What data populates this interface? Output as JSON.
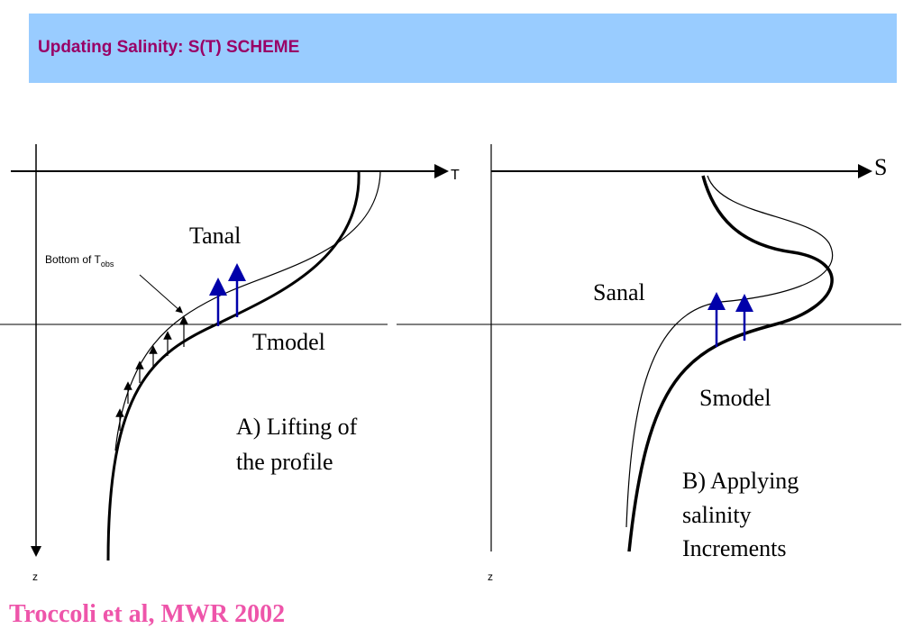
{
  "header": {
    "title": "Updating Salinity: S(T) SCHEME"
  },
  "left_panel": {
    "x_axis": "T",
    "z_axis": "z",
    "upper_curve": "Tanal",
    "lower_curve": "Tmodel",
    "annotation": {
      "text": "Bottom of T",
      "subscript": "obs"
    },
    "caption": [
      "A) Lifting of",
      "the profile"
    ]
  },
  "right_panel": {
    "x_axis": "S",
    "z_axis": "z",
    "upper_curve": "Sanal",
    "lower_curve": "Smodel",
    "caption": [
      "B) Applying",
      "salinity",
      "Increments"
    ]
  },
  "citation": "Troccoli et al, MWR 2002"
}
